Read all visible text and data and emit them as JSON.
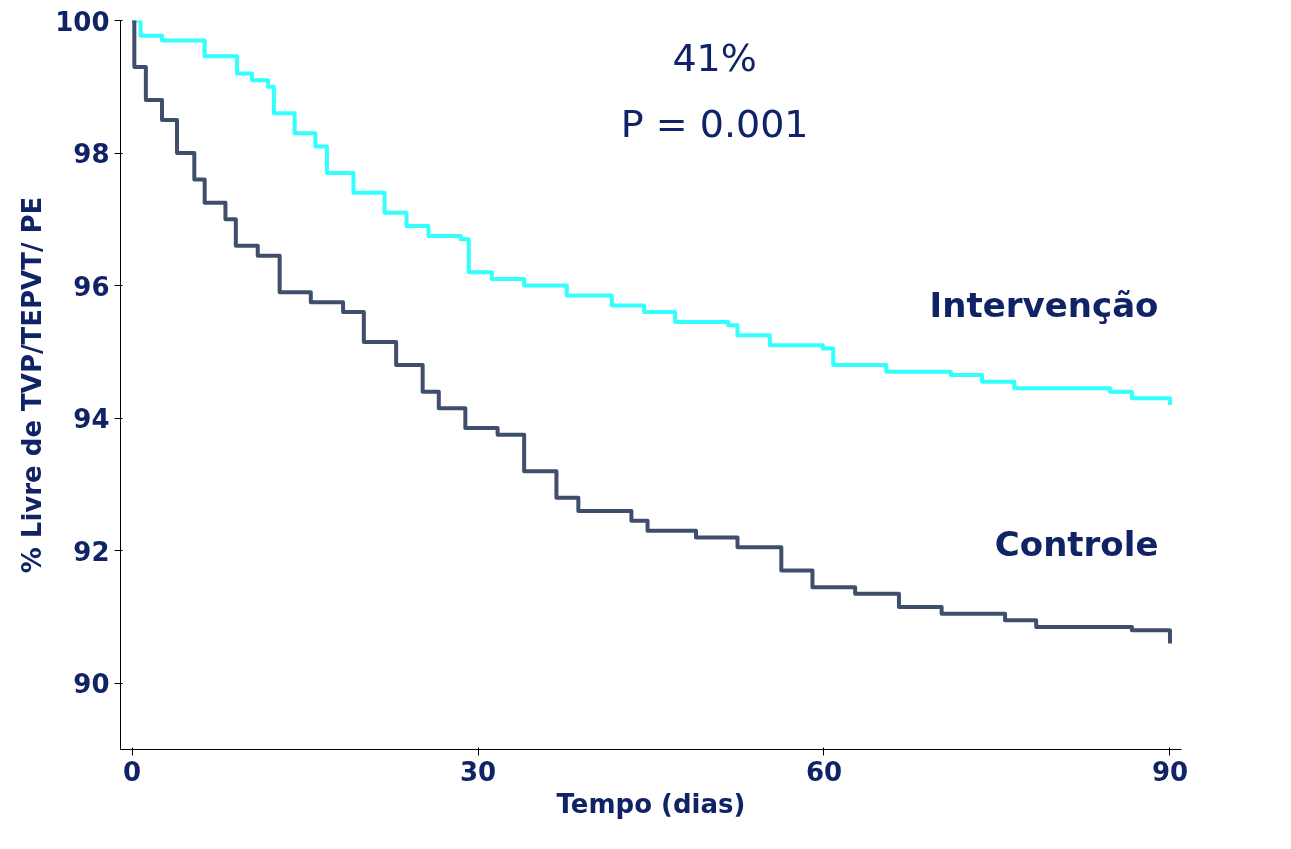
{
  "chart_data": {
    "type": "step",
    "xlabel": "Tempo (dias)",
    "ylabel": "% Livre de TVP/TEPVT/ PE",
    "xlim": [
      -1,
      91
    ],
    "ylim": [
      89,
      100
    ],
    "xticks": [
      0,
      30,
      60,
      90
    ],
    "yticks": [
      90,
      92,
      94,
      96,
      98,
      100
    ],
    "grid": false,
    "legend": false,
    "annotations": [
      "41%",
      "P = 0.001"
    ],
    "series": [
      {
        "name": "Intervenção",
        "color": "#33ffff",
        "x": [
          0,
          0.74,
          2.6,
          5.4,
          6.3,
          9.1,
          10.4,
          11.8,
          12.3,
          14.1,
          15.9,
          16.9,
          19.2,
          21.9,
          23.8,
          25.7,
          28.5,
          29.2,
          31.2,
          34,
          37.7,
          41.6,
          44.4,
          47.1,
          51.7,
          52.5,
          55.3,
          59.9,
          60.8,
          65.4,
          71,
          73.7,
          76.5,
          84.8,
          86.7,
          90
        ],
        "values": [
          100,
          99.77,
          99.7,
          99.7,
          99.46,
          99.2,
          99.1,
          99.0,
          98.6,
          98.3,
          98.1,
          97.7,
          97.4,
          97.1,
          96.9,
          96.75,
          96.7,
          96.2,
          96.1,
          96.0,
          95.85,
          95.7,
          95.6,
          95.45,
          95.4,
          95.25,
          95.1,
          95.05,
          94.8,
          94.7,
          94.65,
          94.55,
          94.45,
          94.4,
          94.3,
          94.2
        ]
      },
      {
        "name": "Controle",
        "color": "#3f4f6b",
        "x": [
          0,
          0.2,
          1.2,
          2.6,
          3.9,
          5.4,
          6.3,
          8.1,
          9,
          10.9,
          12.8,
          15.5,
          18.3,
          20.1,
          22.9,
          25.2,
          26.6,
          28.9,
          31.7,
          34,
          36.8,
          38.7,
          43.3,
          44.7,
          48.9,
          52.5,
          56.3,
          59,
          62.7,
          66.5,
          70.2,
          75.7,
          78.4,
          86.7,
          90
        ],
        "values": [
          100,
          99.3,
          98.8,
          98.5,
          98.0,
          97.6,
          97.25,
          97.0,
          96.6,
          96.45,
          95.9,
          95.75,
          95.6,
          95.15,
          94.8,
          94.4,
          94.15,
          93.85,
          93.75,
          93.2,
          92.8,
          92.6,
          92.45,
          92.3,
          92.2,
          92.05,
          91.7,
          91.45,
          91.35,
          91.15,
          91.05,
          90.95,
          90.85,
          90.8,
          90.6
        ]
      }
    ]
  }
}
